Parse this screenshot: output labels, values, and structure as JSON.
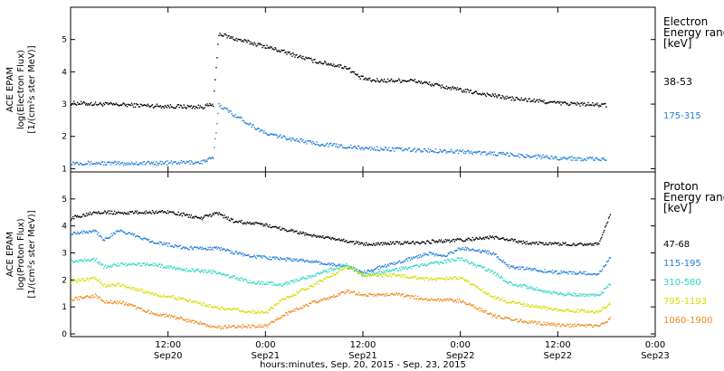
{
  "chart_data": [
    {
      "type": "scatter",
      "panel": "electron",
      "ylabel": [
        "ACE EPAM",
        "log(Electron Flux)",
        "[1/(cm²s ster MeV)]"
      ],
      "ylim": [
        0.9,
        6.0
      ],
      "yticks": [
        1,
        2,
        3,
        4,
        5
      ],
      "legend_title": [
        "Electron",
        "Energy ranges",
        "[keV]"
      ],
      "series": [
        {
          "name": "38-53",
          "color": "#000000",
          "points": [
            [
              0,
              3.05
            ],
            [
              6,
              3.0
            ],
            [
              12,
              2.95
            ],
            [
              16,
              2.93
            ],
            [
              17.5,
              3.0
            ],
            [
              18.2,
              5.2
            ],
            [
              20,
              5.05
            ],
            [
              24,
              4.8
            ],
            [
              30,
              4.35
            ],
            [
              34,
              4.15
            ],
            [
              35.5,
              3.85
            ],
            [
              37,
              3.75
            ],
            [
              42,
              3.75
            ],
            [
              48,
              3.45
            ],
            [
              54,
              3.2
            ],
            [
              60,
              3.05
            ],
            [
              66,
              2.98
            ]
          ]
        },
        {
          "name": "175-315",
          "color": "#1e7fd8",
          "points": [
            [
              0,
              1.2
            ],
            [
              6,
              1.18
            ],
            [
              12,
              1.2
            ],
            [
              16,
              1.22
            ],
            [
              17.5,
              1.35
            ],
            [
              18.2,
              3.0
            ],
            [
              20,
              2.7
            ],
            [
              24,
              2.1
            ],
            [
              30,
              1.8
            ],
            [
              36,
              1.65
            ],
            [
              42,
              1.6
            ],
            [
              48,
              1.55
            ],
            [
              54,
              1.45
            ],
            [
              60,
              1.35
            ],
            [
              66,
              1.3
            ]
          ]
        }
      ]
    },
    {
      "type": "scatter",
      "panel": "proton",
      "ylabel": [
        "ACE EPAM",
        "log(Proton Flux)",
        "[1/(cm²s ster MeV)]"
      ],
      "ylim": [
        -0.1,
        6.0
      ],
      "yticks": [
        0,
        1,
        2,
        3,
        4,
        5
      ],
      "legend_title": [
        "Proton",
        "Energy ranges",
        "[keV]"
      ],
      "xticks": [
        {
          "hours": 12,
          "label": "12:00",
          "sub": "Sep20"
        },
        {
          "hours": 24,
          "label": "0:00",
          "sub": "Sep21"
        },
        {
          "hours": 36,
          "label": "12:00",
          "sub": "Sep21"
        },
        {
          "hours": 48,
          "label": "0:00",
          "sub": "Sep22"
        },
        {
          "hours": 60,
          "label": "12:00",
          "sub": "Sep22"
        },
        {
          "hours": 72,
          "label": "0:00",
          "sub": "Sep23"
        }
      ],
      "xlim": [
        0,
        72
      ],
      "xlabel": "hours:minutes, Sep. 20, 2015 - Sep. 23, 2015",
      "series": [
        {
          "name": "47-68",
          "color": "#000000",
          "points": [
            [
              0,
              4.3
            ],
            [
              3,
              4.55
            ],
            [
              6,
              4.5
            ],
            [
              12,
              4.55
            ],
            [
              16,
              4.3
            ],
            [
              18,
              4.5
            ],
            [
              20,
              4.2
            ],
            [
              24,
              4.05
            ],
            [
              30,
              3.65
            ],
            [
              36,
              3.35
            ],
            [
              42,
              3.4
            ],
            [
              48,
              3.5
            ],
            [
              52,
              3.6
            ],
            [
              56,
              3.4
            ],
            [
              60,
              3.35
            ],
            [
              65,
              3.35
            ],
            [
              66.5,
              4.5
            ]
          ]
        },
        {
          "name": "115-195",
          "color": "#1e7fd8",
          "points": [
            [
              0,
              3.75
            ],
            [
              3,
              3.85
            ],
            [
              4,
              3.5
            ],
            [
              6,
              3.85
            ],
            [
              10,
              3.45
            ],
            [
              14,
              3.2
            ],
            [
              18,
              3.2
            ],
            [
              22,
              2.9
            ],
            [
              28,
              2.75
            ],
            [
              32,
              2.6
            ],
            [
              34,
              2.5
            ],
            [
              36,
              2.3
            ],
            [
              40,
              2.65
            ],
            [
              44,
              3.0
            ],
            [
              46,
              2.9
            ],
            [
              48,
              3.2
            ],
            [
              52,
              3.0
            ],
            [
              54,
              2.5
            ],
            [
              60,
              2.3
            ],
            [
              65,
              2.25
            ],
            [
              66.5,
              2.9
            ]
          ]
        },
        {
          "name": "310-580",
          "color": "#2ad6c8",
          "points": [
            [
              0,
              2.7
            ],
            [
              3,
              2.8
            ],
            [
              4,
              2.5
            ],
            [
              6,
              2.6
            ],
            [
              10,
              2.6
            ],
            [
              14,
              2.4
            ],
            [
              18,
              2.3
            ],
            [
              22,
              1.95
            ],
            [
              26,
              1.85
            ],
            [
              30,
              2.2
            ],
            [
              34,
              2.6
            ],
            [
              36,
              2.2
            ],
            [
              40,
              2.4
            ],
            [
              44,
              2.6
            ],
            [
              48,
              2.8
            ],
            [
              52,
              2.3
            ],
            [
              54,
              1.9
            ],
            [
              60,
              1.5
            ],
            [
              65,
              1.45
            ],
            [
              66.5,
              1.9
            ]
          ]
        },
        {
          "name": "795-1193",
          "color": "#d6dc00",
          "points": [
            [
              0,
              1.95
            ],
            [
              3,
              2.1
            ],
            [
              4,
              1.8
            ],
            [
              6,
              1.85
            ],
            [
              10,
              1.5
            ],
            [
              14,
              1.3
            ],
            [
              18,
              1.0
            ],
            [
              22,
              0.85
            ],
            [
              24,
              0.8
            ],
            [
              26,
              1.3
            ],
            [
              30,
              1.85
            ],
            [
              34,
              2.5
            ],
            [
              36,
              2.2
            ],
            [
              40,
              2.2
            ],
            [
              44,
              2.05
            ],
            [
              48,
              2.1
            ],
            [
              52,
              1.4
            ],
            [
              54,
              1.2
            ],
            [
              60,
              0.9
            ],
            [
              65,
              0.85
            ],
            [
              66.5,
              1.2
            ]
          ]
        },
        {
          "name": "1060-1900",
          "color": "#ee8a1a",
          "points": [
            [
              0,
              1.3
            ],
            [
              3,
              1.45
            ],
            [
              4,
              1.2
            ],
            [
              6,
              1.2
            ],
            [
              10,
              0.8
            ],
            [
              14,
              0.55
            ],
            [
              18,
              0.25
            ],
            [
              20,
              0.3
            ],
            [
              24,
              0.3
            ],
            [
              26,
              0.7
            ],
            [
              30,
              1.2
            ],
            [
              34,
              1.6
            ],
            [
              36,
              1.45
            ],
            [
              40,
              1.5
            ],
            [
              44,
              1.3
            ],
            [
              48,
              1.25
            ],
            [
              52,
              0.7
            ],
            [
              54,
              0.55
            ],
            [
              60,
              0.35
            ],
            [
              65,
              0.3
            ],
            [
              66.5,
              0.6
            ]
          ]
        }
      ]
    }
  ]
}
